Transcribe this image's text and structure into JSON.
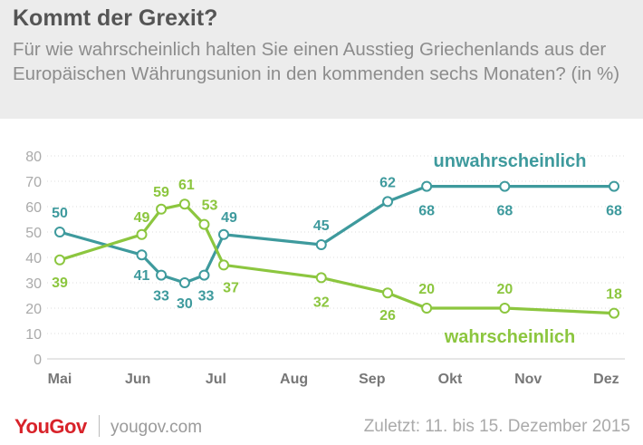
{
  "header": {
    "title": "Kommt der Grexit?",
    "subtitle": "Für wie wahrscheinlich halten Sie einen Ausstieg Griechenlands aus der Europäischen Währungsunion in den kommenden sechs Monaten? (in %)"
  },
  "footer": {
    "logo": "YouGov",
    "site": "yougov.com",
    "dates": "Zuletzt: 11. bis 15. Dezember 2015"
  },
  "colors": {
    "unwahrscheinlich": "#3e9a9d",
    "wahrscheinlich": "#8cc63f",
    "axis_text": "#aaaaaa",
    "grid": "#dddddd",
    "header_bg": "#ececec"
  },
  "chart_data": {
    "type": "line",
    "x_ticks": [
      "Mai",
      "Jun",
      "Jul",
      "Aug",
      "Sep",
      "Okt",
      "Nov",
      "Dez"
    ],
    "ylim": [
      0,
      80
    ],
    "y_ticks": [
      0,
      10,
      20,
      30,
      40,
      50,
      60,
      70,
      80
    ],
    "grid": true,
    "series": [
      {
        "name": "unwahrscheinlich",
        "color": "#3e9a9d",
        "points": [
          {
            "month": 0.0,
            "value": 50
          },
          {
            "month": 1.05,
            "value": 41
          },
          {
            "month": 1.3,
            "value": 33
          },
          {
            "month": 1.6,
            "value": 30
          },
          {
            "month": 1.85,
            "value": 33
          },
          {
            "month": 2.1,
            "value": 49
          },
          {
            "month": 3.35,
            "value": 45
          },
          {
            "month": 4.2,
            "value": 62
          },
          {
            "month": 4.7,
            "value": 68
          },
          {
            "month": 5.7,
            "value": 68
          },
          {
            "month": 7.1,
            "value": 68
          }
        ]
      },
      {
        "name": "wahrscheinlich",
        "color": "#8cc63f",
        "points": [
          {
            "month": 0.0,
            "value": 39
          },
          {
            "month": 1.05,
            "value": 49
          },
          {
            "month": 1.3,
            "value": 59
          },
          {
            "month": 1.6,
            "value": 61
          },
          {
            "month": 1.85,
            "value": 53
          },
          {
            "month": 2.1,
            "value": 37
          },
          {
            "month": 3.35,
            "value": 32
          },
          {
            "month": 4.2,
            "value": 26
          },
          {
            "month": 4.7,
            "value": 20
          },
          {
            "month": 5.7,
            "value": 20
          },
          {
            "month": 7.1,
            "value": 18
          }
        ]
      }
    ]
  }
}
